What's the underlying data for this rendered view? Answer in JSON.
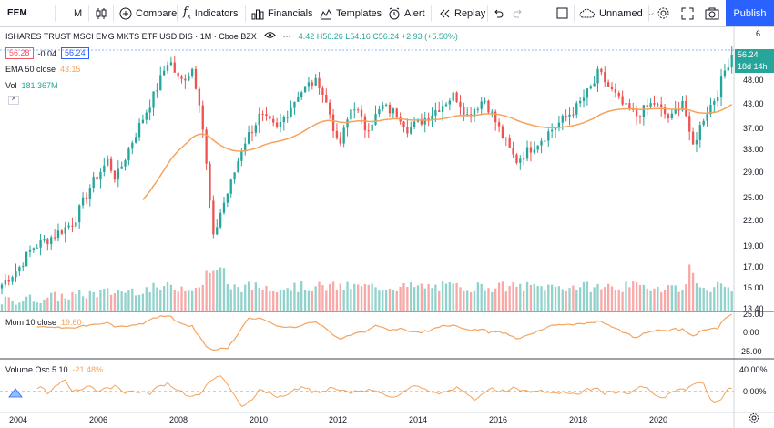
{
  "toolbar": {
    "symbol": "EEM",
    "interval": "M",
    "compare": "Compare",
    "indicators": "Indicators",
    "financials": "Financials",
    "templates": "Templates",
    "alert": "Alert",
    "replay": "Replay",
    "layout_name": "Unnamed",
    "publish": "Publish"
  },
  "legend": {
    "title": "ISHARES TRUST MSCI EMG MKTS ETF USD DIS · 1M · Cboe BZX",
    "ohlc": "4.42 H56.26 L54.16 C56.24 +2.93 (+5.50%)",
    "sell_price": "56.28",
    "spread": "-0.04",
    "buy_price": "56.24",
    "ema_label": "EMA 50 close",
    "ema_value": "43.15",
    "vol_label": "Vol",
    "vol_value": "181.367M",
    "mom_label": "Mom 10 close",
    "mom_value": "19.60",
    "vosc_label": "Volume Osc 5 10",
    "vosc_value": "-21.48%"
  },
  "price_axis": {
    "top_marker": "6",
    "last_price": "56.24",
    "countdown": "18d 14h",
    "ticks": [
      "48.00",
      "43.00",
      "37.00",
      "33.00",
      "29.00",
      "25.00",
      "22.00",
      "19.00",
      "17.00",
      "15.00",
      "13.40"
    ],
    "mom_ticks": [
      "25.00",
      "0.00",
      "-25.00"
    ],
    "vosc_ticks": [
      "40.00%",
      "0.00%"
    ]
  },
  "x_axis": [
    "2004",
    "2006",
    "2008",
    "2010",
    "2012",
    "2014",
    "2016",
    "2018",
    "2020"
  ],
  "colors": {
    "up": "#26a69a",
    "down": "#ef5350",
    "ema": "#f5a35c",
    "accent": "#2962ff"
  },
  "chart_data": {
    "type": "candlestick",
    "interval": "monthly",
    "x_range": [
      2003.9,
      2021.2
    ],
    "price_axis_scale": "log",
    "anchors": [
      [
        2003.9,
        15.5
      ],
      [
        2004.3,
        17
      ],
      [
        2004.6,
        19
      ],
      [
        2005.0,
        20
      ],
      [
        2005.6,
        22
      ],
      [
        2006.0,
        27
      ],
      [
        2006.4,
        31
      ],
      [
        2006.6,
        28
      ],
      [
        2007.0,
        35
      ],
      [
        2007.5,
        45
      ],
      [
        2007.85,
        55
      ],
      [
        2008.1,
        48
      ],
      [
        2008.4,
        52
      ],
      [
        2008.6,
        42
      ],
      [
        2008.9,
        20
      ],
      [
        2009.05,
        23
      ],
      [
        2009.3,
        27
      ],
      [
        2009.6,
        34
      ],
      [
        2010.0,
        40
      ],
      [
        2010.4,
        37
      ],
      [
        2010.9,
        45
      ],
      [
        2011.2,
        48
      ],
      [
        2011.4,
        48
      ],
      [
        2011.7,
        39
      ],
      [
        2011.85,
        33
      ],
      [
        2012.2,
        43
      ],
      [
        2012.5,
        37
      ],
      [
        2012.9,
        42
      ],
      [
        2013.3,
        40
      ],
      [
        2013.5,
        37
      ],
      [
        2014.0,
        40
      ],
      [
        2014.6,
        45
      ],
      [
        2014.9,
        40
      ],
      [
        2015.3,
        44
      ],
      [
        2015.6,
        38
      ],
      [
        2015.9,
        33
      ],
      [
        2016.05,
        31
      ],
      [
        2016.5,
        34
      ],
      [
        2016.9,
        37
      ],
      [
        2017.5,
        42
      ],
      [
        2017.9,
        48
      ],
      [
        2018.0,
        51
      ],
      [
        2018.3,
        46
      ],
      [
        2018.6,
        42
      ],
      [
        2018.9,
        40
      ],
      [
        2019.3,
        43
      ],
      [
        2019.7,
        39
      ],
      [
        2020.0,
        44
      ],
      [
        2020.2,
        33
      ],
      [
        2020.5,
        40
      ],
      [
        2020.8,
        45
      ],
      [
        2021.0,
        52
      ],
      [
        2021.15,
        56.24
      ]
    ],
    "ema50_last": 43.15,
    "momentum_last": 19.6,
    "volume_osc_last": -21.48
  }
}
